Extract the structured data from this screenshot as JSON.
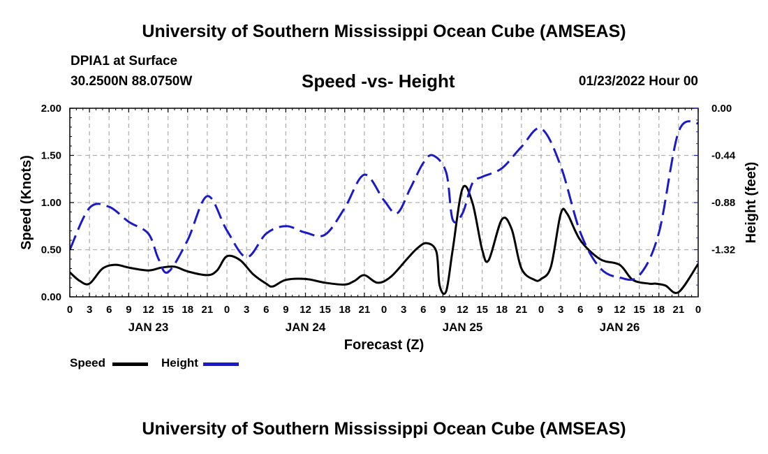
{
  "header": {
    "title": "University of Southern Mississippi Ocean Cube (AMSEAS)",
    "station": "DPIA1 at Surface",
    "coords": "30.2500N  88.0750W",
    "subtitle": "Speed -vs- Height",
    "datestamp": "01/23/2022 Hour 00"
  },
  "footer": {
    "title": "University of Southern Mississippi Ocean Cube (AMSEAS)"
  },
  "legend": {
    "speed_label": "Speed",
    "height_label": "Height"
  },
  "colors": {
    "speed": "#000000",
    "height": "#1a1acc",
    "grid": "#b0b0b0"
  },
  "chart_data": {
    "type": "line",
    "title": "Speed -vs- Height",
    "xlabel": "Forecast (Z)",
    "ylabel": "Speed (Knots)",
    "y2label": "Height (feet)",
    "x_range_hours": [
      0,
      96
    ],
    "x_tick_step_hours": 3,
    "x_tick_labels": [
      "0",
      "3",
      "6",
      "9",
      "12",
      "15",
      "18",
      "21",
      "0",
      "3",
      "6",
      "9",
      "12",
      "15",
      "18",
      "21",
      "0",
      "3",
      "6",
      "9",
      "12",
      "15",
      "18",
      "21",
      "0",
      "3",
      "6",
      "9",
      "12",
      "15",
      "18",
      "21",
      "0"
    ],
    "date_labels": [
      {
        "hour": 12,
        "label": "JAN 23"
      },
      {
        "hour": 36,
        "label": "JAN 24"
      },
      {
        "hour": 60,
        "label": "JAN 25"
      },
      {
        "hour": 84,
        "label": "JAN 26"
      }
    ],
    "ylim": [
      0,
      2.0
    ],
    "y_ticks": [
      "0.00",
      "0.50",
      "1.00",
      "1.50",
      "2.00"
    ],
    "y2lim": [
      -1.76,
      0
    ],
    "y2_ticks": [
      "0.00",
      "-0.44",
      "-0.88",
      "-1.32"
    ],
    "grid": true,
    "series": [
      {
        "name": "Speed",
        "axis": "left",
        "style": "solid",
        "x": [
          0,
          1.5,
          3,
          5,
          7,
          9,
          12,
          14,
          16,
          18,
          21,
          22.5,
          24,
          26,
          28,
          30,
          31,
          33,
          36,
          39,
          42,
          43.5,
          45,
          47,
          49,
          51.5,
          53,
          54.5,
          56,
          56.5,
          57.5,
          58.5,
          60,
          61.5,
          63,
          64,
          66,
          67.5,
          69,
          71,
          72,
          73.5,
          75,
          76,
          78,
          81,
          84,
          86,
          88.5,
          89.5,
          91,
          93,
          96
        ],
        "values": [
          0.26,
          0.17,
          0.14,
          0.3,
          0.34,
          0.31,
          0.28,
          0.31,
          0.32,
          0.27,
          0.23,
          0.28,
          0.43,
          0.39,
          0.24,
          0.14,
          0.11,
          0.18,
          0.19,
          0.15,
          0.13,
          0.17,
          0.23,
          0.15,
          0.21,
          0.4,
          0.51,
          0.57,
          0.48,
          0.12,
          0.06,
          0.5,
          1.15,
          1.0,
          0.5,
          0.39,
          0.82,
          0.72,
          0.3,
          0.18,
          0.19,
          0.32,
          0.88,
          0.88,
          0.6,
          0.4,
          0.34,
          0.18,
          0.14,
          0.14,
          0.12,
          0.05,
          0.35
        ]
      },
      {
        "name": "Height",
        "axis": "right",
        "style": "dashed",
        "x": [
          0,
          3,
          6,
          9,
          12,
          13.5,
          15,
          18,
          21,
          24,
          27,
          30,
          33,
          36,
          39,
          42,
          45,
          48,
          50,
          52,
          54,
          55.5,
          57.5,
          58.5,
          60,
          61.5,
          63,
          66,
          69,
          72,
          75,
          78,
          81,
          84,
          87,
          90,
          93,
          96
        ],
        "values": [
          -1.32,
          -0.93,
          -0.92,
          -1.06,
          -1.17,
          -1.4,
          -1.53,
          -1.23,
          -0.82,
          -1.14,
          -1.39,
          -1.17,
          -1.1,
          -1.16,
          -1.18,
          -0.93,
          -0.62,
          -0.86,
          -0.98,
          -0.75,
          -0.51,
          -0.44,
          -0.6,
          -1.04,
          -0.98,
          -0.7,
          -0.64,
          -0.56,
          -0.36,
          -0.19,
          -0.54,
          -1.16,
          -1.49,
          -1.58,
          -1.56,
          -1.16,
          -0.22,
          -0.14
        ]
      }
    ]
  }
}
